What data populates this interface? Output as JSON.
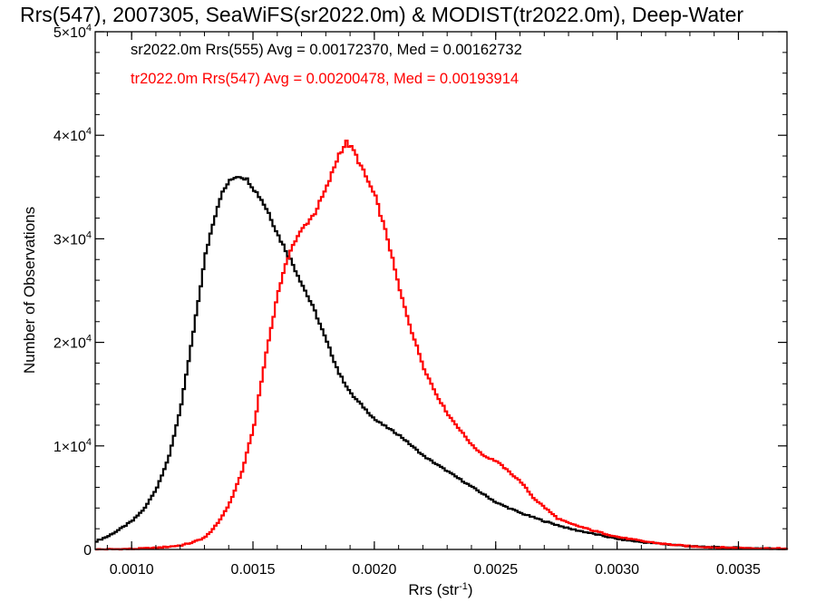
{
  "chart_data": {
    "type": "line",
    "title": "Rrs(547), 2007305, SeaWiFS(sr2022.0m) & MODIST(tr2022.0m), Deep-Water",
    "xlabel": "Rrs (str",
    "xlabel_sup": "-1",
    "xlabel_close": ")",
    "ylabel": "Number of Observations",
    "xlim": [
      0.00085,
      0.0037
    ],
    "ylim": [
      0,
      50000
    ],
    "x_ticks": [
      {
        "value": 0.001,
        "label": "0.0010"
      },
      {
        "value": 0.0015,
        "label": "0.0015"
      },
      {
        "value": 0.002,
        "label": "0.0020"
      },
      {
        "value": 0.0025,
        "label": "0.0025"
      },
      {
        "value": 0.003,
        "label": "0.0030"
      },
      {
        "value": 0.0035,
        "label": "0.0035"
      }
    ],
    "y_ticks": [
      {
        "value": 0,
        "mant": "0",
        "exp": ""
      },
      {
        "value": 10000,
        "mant": "1×10",
        "exp": "4"
      },
      {
        "value": 20000,
        "mant": "2×10",
        "exp": "4"
      },
      {
        "value": 30000,
        "mant": "3×10",
        "exp": "4"
      },
      {
        "value": 40000,
        "mant": "4×10",
        "exp": "4"
      },
      {
        "value": 50000,
        "mant": "5×10",
        "exp": "4"
      }
    ],
    "grid": false,
    "step": true,
    "annotations": [
      {
        "text": "sr2022.0m Rrs(555) Avg = 0.00172370, Med = 0.00162732",
        "color": "#000000"
      },
      {
        "text": "tr2022.0m Rrs(547) Avg = 0.00200478, Med = 0.00193914",
        "color": "#ff0000"
      }
    ],
    "series": [
      {
        "color": "#000000",
        "x": [
          0.00085,
          0.0009,
          0.00095,
          0.001,
          0.00105,
          0.0011,
          0.00115,
          0.0012,
          0.00125,
          0.0013,
          0.00133,
          0.00136,
          0.00139,
          0.00142,
          0.00144,
          0.00146,
          0.00148,
          0.0015,
          0.00153,
          0.00156,
          0.0016,
          0.00165,
          0.0017,
          0.00175,
          0.0018,
          0.00185,
          0.0019,
          0.002,
          0.0021,
          0.0022,
          0.0023,
          0.0024,
          0.0025,
          0.0026,
          0.0027,
          0.0028,
          0.0029,
          0.003,
          0.0031,
          0.0032,
          0.0033,
          0.0034,
          0.0035,
          0.0036,
          0.0037
        ],
        "y": [
          800,
          1300,
          2000,
          2800,
          4000,
          6000,
          9000,
          14000,
          21000,
          28500,
          31500,
          34000,
          35300,
          36000,
          36100,
          35900,
          35500,
          34800,
          33800,
          32500,
          30300,
          28000,
          25500,
          23000,
          20000,
          17000,
          15000,
          12500,
          11000,
          9000,
          7500,
          6000,
          4500,
          3500,
          2700,
          2000,
          1500,
          1000,
          700,
          500,
          300,
          200,
          150,
          100,
          80
        ]
      },
      {
        "color": "#ff0000",
        "x": [
          0.00085,
          0.001,
          0.0011,
          0.0012,
          0.00125,
          0.0013,
          0.00135,
          0.0014,
          0.00145,
          0.0015,
          0.00155,
          0.0016,
          0.00165,
          0.0017,
          0.00175,
          0.0018,
          0.00185,
          0.00188,
          0.00191,
          0.00195,
          0.002,
          0.00205,
          0.0021,
          0.00215,
          0.0022,
          0.00225,
          0.0023,
          0.00235,
          0.0024,
          0.00245,
          0.0025,
          0.00255,
          0.0026,
          0.00265,
          0.0027,
          0.00275,
          0.0028,
          0.0029,
          0.003,
          0.0031,
          0.0032,
          0.0033,
          0.0034,
          0.0035,
          0.0036,
          0.0037
        ],
        "y": [
          0,
          50,
          150,
          400,
          700,
          1200,
          2500,
          4500,
          7500,
          12000,
          19000,
          25000,
          29000,
          31000,
          32500,
          35000,
          38200,
          39300,
          38500,
          36500,
          34000,
          30000,
          25000,
          21000,
          17500,
          15000,
          13000,
          11500,
          10000,
          9000,
          8500,
          7500,
          6500,
          5000,
          4000,
          3000,
          2500,
          1800,
          1200,
          800,
          500,
          300,
          200,
          150,
          100,
          80
        ]
      }
    ]
  }
}
